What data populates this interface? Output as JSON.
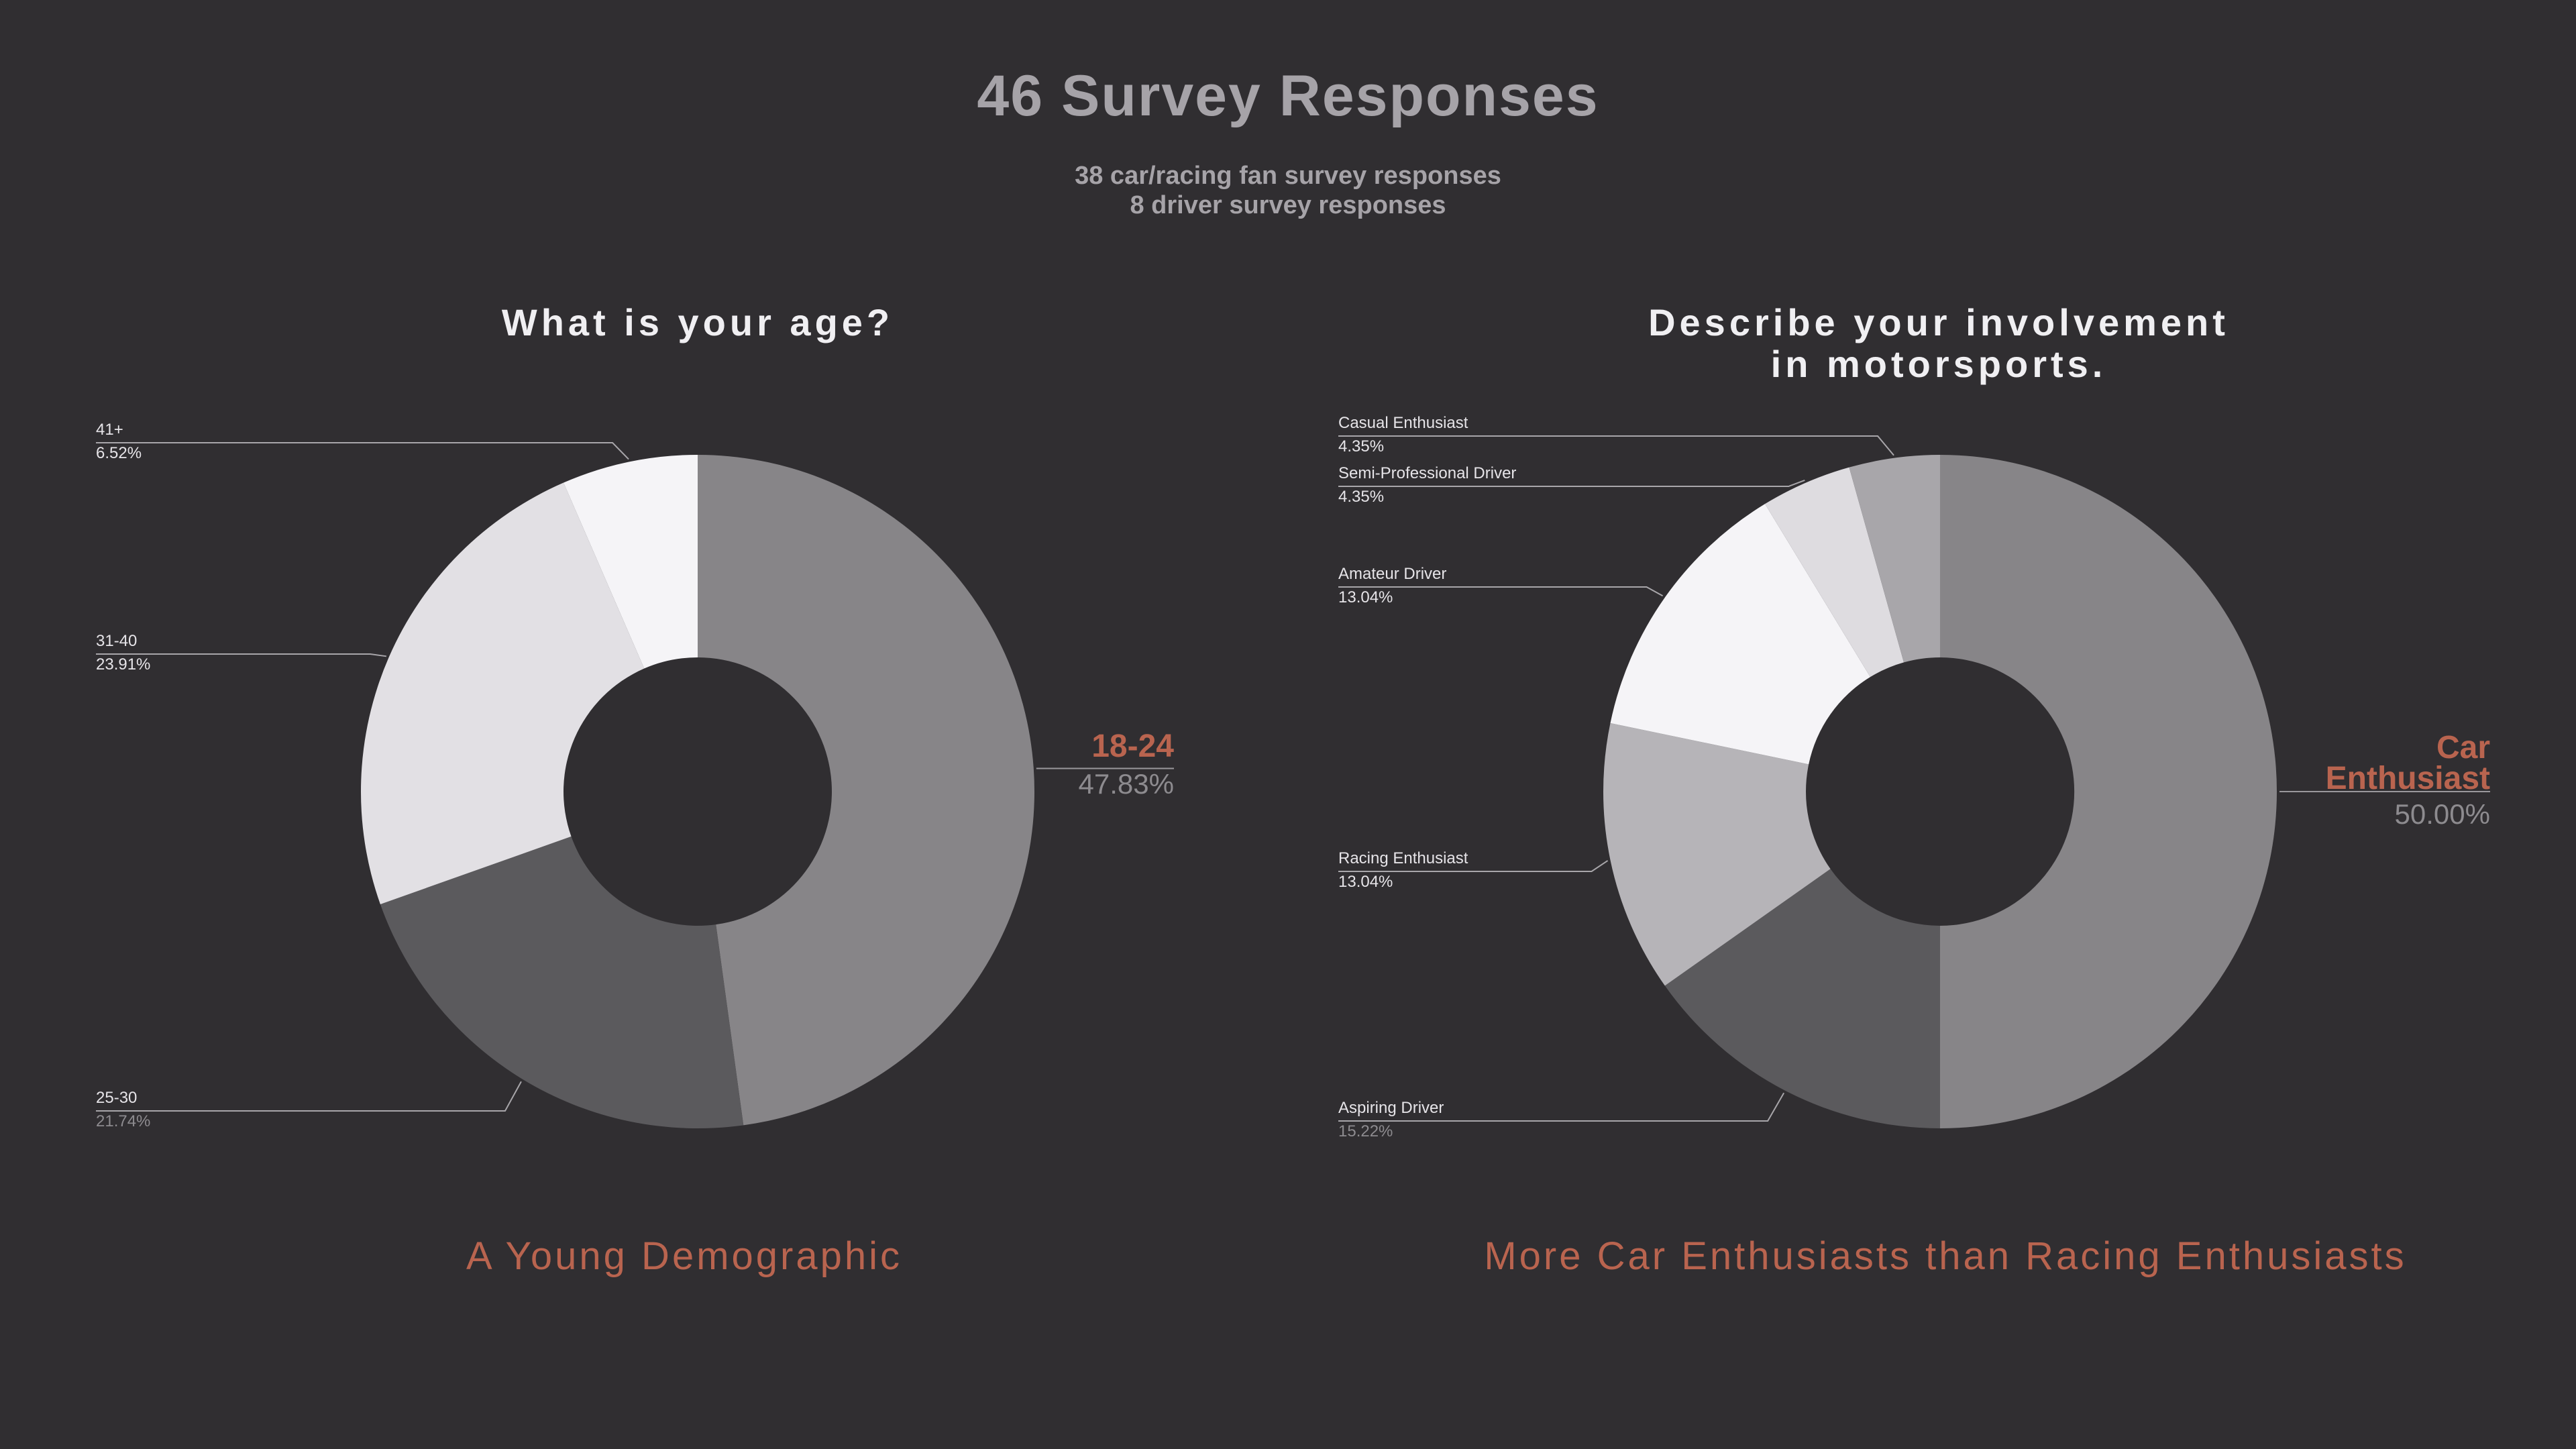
{
  "title": "46 Survey Responses",
  "subtitle_lines": [
    "38 car/racing fan survey responses",
    "8 driver survey responses"
  ],
  "colors": {
    "background": "#302e31",
    "accent": "#b9644f",
    "muted_text": "#a6a3a8"
  },
  "chart_data": [
    {
      "type": "pie",
      "variant": "donut",
      "title": "What is your age?",
      "categories": [
        "18-24",
        "25-30",
        "31-40",
        "41+"
      ],
      "values": [
        47.83,
        21.74,
        23.91,
        6.52
      ],
      "value_labels": [
        "47.83%",
        "21.74%",
        "23.91%",
        "6.52%"
      ],
      "slice_colors": [
        "#878588",
        "#5b5a5d",
        "#e2e0e4",
        "#f5f4f7"
      ],
      "highlight": "18-24",
      "takeaway": "A Young Demographic"
    },
    {
      "type": "pie",
      "variant": "donut",
      "title": "Describe your involvement\nin motorsports.",
      "categories": [
        "Car Enthusiast",
        "Aspiring Driver",
        "Racing Enthusiast",
        "Amateur Driver",
        "Semi-Professional Driver",
        "Casual Enthusiast"
      ],
      "values": [
        50.0,
        15.22,
        13.04,
        13.04,
        4.35,
        4.35
      ],
      "value_labels": [
        "50.00%",
        "15.22%",
        "13.04%",
        "13.04%",
        "4.35%",
        "4.35%"
      ],
      "slice_colors": [
        "#878588",
        "#5b5a5d",
        "#b6b4b8",
        "#f5f4f7",
        "#dedce0",
        "#a8a6aa"
      ],
      "highlight": "Car Enthusiast",
      "highlight_label_lines": [
        "Car",
        "Enthusiast"
      ],
      "takeaway": "More Car Enthusiasts than Racing Enthusiasts"
    }
  ]
}
